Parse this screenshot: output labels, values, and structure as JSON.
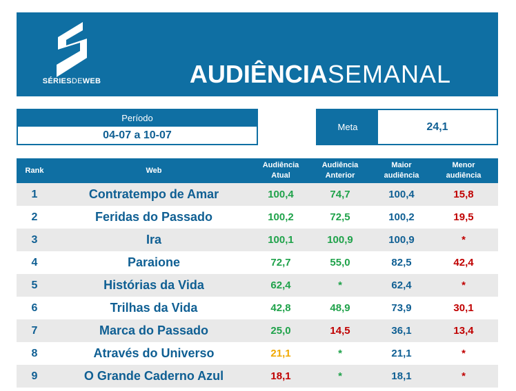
{
  "brand": {
    "logo_text_bold": "SÉRIES",
    "logo_text_light": "DE",
    "logo_text_bold2": "WEB"
  },
  "title": {
    "bold": "AUDIÊNCIA",
    "light": "SEMANAL"
  },
  "periodo": {
    "label": "Período",
    "value": "04-07 a 10-07"
  },
  "meta": {
    "label": "Meta",
    "value": "24,1"
  },
  "colors": {
    "primary": "#0f6fa3",
    "green": "#1fa24a",
    "red": "#c00000",
    "yellow": "#f0a800"
  },
  "table": {
    "headers": {
      "rank": "Rank",
      "web": "Web",
      "atual_line1": "Audiência",
      "atual_line2": "Atual",
      "anterior_line1": "Audiência",
      "anterior_line2": "Anterior",
      "maior_line1": "Maior",
      "maior_line2": "audiência",
      "menor_line1": "Menor",
      "menor_line2": "audiência"
    },
    "rows": [
      {
        "rank": "1",
        "web": "Contratempo de Amar",
        "atual": "100,4",
        "atual_color": "green",
        "anterior": "74,7",
        "anterior_color": "green",
        "maior": "100,4",
        "menor": "15,8",
        "menor_color": "red"
      },
      {
        "rank": "2",
        "web": "Feridas do Passado",
        "atual": "100,2",
        "atual_color": "green",
        "anterior": "72,5",
        "anterior_color": "green",
        "maior": "100,2",
        "menor": "19,5",
        "menor_color": "red"
      },
      {
        "rank": "3",
        "web": "Ira",
        "atual": "100,1",
        "atual_color": "green",
        "anterior": "100,9",
        "anterior_color": "green",
        "maior": "100,9",
        "menor": "*",
        "menor_color": "red"
      },
      {
        "rank": "4",
        "web": "Paraione",
        "atual": "72,7",
        "atual_color": "green",
        "anterior": "55,0",
        "anterior_color": "green",
        "maior": "82,5",
        "menor": "42,4",
        "menor_color": "red"
      },
      {
        "rank": "5",
        "web": "Histórias da Vida",
        "atual": "62,4",
        "atual_color": "green",
        "anterior": "*",
        "anterior_color": "green",
        "maior": "62,4",
        "menor": "*",
        "menor_color": "red"
      },
      {
        "rank": "6",
        "web": "Trilhas da Vida",
        "atual": "42,8",
        "atual_color": "green",
        "anterior": "48,9",
        "anterior_color": "green",
        "maior": "73,9",
        "menor": "30,1",
        "menor_color": "red"
      },
      {
        "rank": "7",
        "web": "Marca do Passado",
        "atual": "25,0",
        "atual_color": "green",
        "anterior": "14,5",
        "anterior_color": "red",
        "maior": "36,1",
        "menor": "13,4",
        "menor_color": "red"
      },
      {
        "rank": "8",
        "web": "Através do Universo",
        "atual": "21,1",
        "atual_color": "yellow",
        "anterior": "*",
        "anterior_color": "green",
        "maior": "21,1",
        "menor": "*",
        "menor_color": "red"
      },
      {
        "rank": "9",
        "web": "O Grande Caderno Azul",
        "atual": "18,1",
        "atual_color": "red",
        "anterior": "*",
        "anterior_color": "green",
        "maior": "18,1",
        "menor": "*",
        "menor_color": "red"
      }
    ]
  }
}
